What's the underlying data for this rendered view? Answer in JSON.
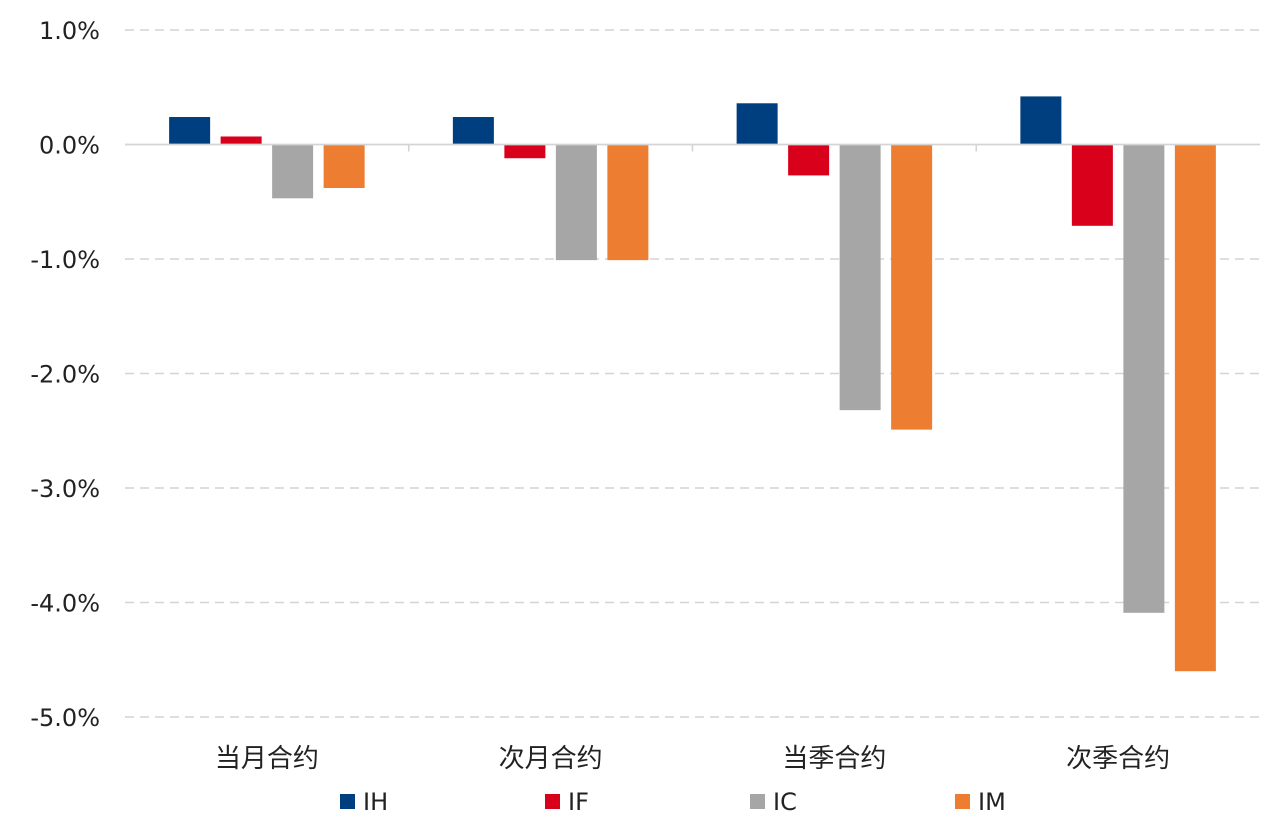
{
  "chart_data": {
    "type": "bar",
    "title": "",
    "xlabel": "",
    "ylabel": "",
    "categories": [
      "当月合约",
      "次月合约",
      "当季合约",
      "次季合约"
    ],
    "series": [
      {
        "name": "IH",
        "color": "#003f7f",
        "values": [
          0.24,
          0.24,
          0.36,
          0.42
        ]
      },
      {
        "name": "IF",
        "color": "#d9001b",
        "values": [
          0.07,
          -0.12,
          -0.27,
          -0.71
        ]
      },
      {
        "name": "IC",
        "color": "#a6a6a6",
        "values": [
          -0.47,
          -1.01,
          -2.32,
          -4.09
        ]
      },
      {
        "name": "IM",
        "color": "#ed7d31",
        "values": [
          -0.38,
          -1.01,
          -2.49,
          -4.6
        ]
      }
    ],
    "ylim": [
      -5.0,
      1.0
    ],
    "yticks": [
      1.0,
      0.0,
      -1.0,
      -2.0,
      -3.0,
      -4.0,
      -5.0
    ],
    "ytick_labels": [
      "1.0%",
      "0.0%",
      "-1.0%",
      "-2.0%",
      "-3.0%",
      "-4.0%",
      "-5.0%"
    ],
    "grid": true,
    "legend_position": "bottom"
  }
}
